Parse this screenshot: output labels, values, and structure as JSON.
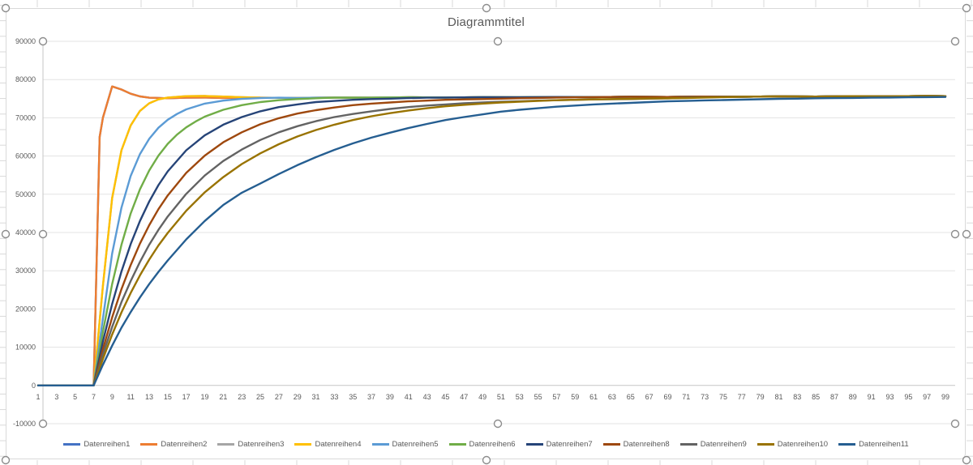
{
  "chart": {
    "title": "Diagrammtitel"
  },
  "axes": {
    "y_ticks": [
      "90000",
      "80000",
      "70000",
      "60000",
      "50000",
      "40000",
      "30000",
      "20000",
      "10000",
      "0",
      "-10000"
    ],
    "x_ticks": [
      "1",
      "3",
      "5",
      "7",
      "9",
      "11",
      "13",
      "15",
      "17",
      "19",
      "21",
      "23",
      "25",
      "27",
      "29",
      "31",
      "33",
      "35",
      "37",
      "39",
      "41",
      "43",
      "45",
      "47",
      "49",
      "51",
      "53",
      "55",
      "57",
      "59",
      "61",
      "63",
      "65",
      "67",
      "69",
      "71",
      "73",
      "75",
      "77",
      "79",
      "81",
      "83",
      "85",
      "87",
      "89",
      "91",
      "93",
      "95",
      "97",
      "99"
    ]
  },
  "colors": {
    "title_text": "#595959",
    "axis_text": "#595959",
    "gridline": "#E3E3E3",
    "axis_line": "#C6C6C6",
    "chart_border": "#D9D9D9",
    "worksheet_line": "#D9D9D9",
    "handle_stroke": "#8C8C8C",
    "handle_fill": "#FFFFFF"
  },
  "chart_data": {
    "type": "line",
    "title": "Diagrammtitel",
    "xlabel": "",
    "ylabel": "",
    "x_range": [
      1,
      99
    ],
    "ylim": [
      -10000,
      90000
    ],
    "grid": true,
    "legend_position": "bottom",
    "note": "11 series; all are 0 for x=1..7 then rise toward ~75500. Series1 coincides with Series2 (hidden under it); Series3 coincides with Series4. Band = common converged tail shared by settled series.",
    "band": [
      [
        21,
        75200
      ],
      [
        25,
        75250
      ],
      [
        29,
        75200
      ],
      [
        33,
        75300
      ],
      [
        37,
        75250
      ],
      [
        41,
        75350
      ],
      [
        45,
        75300
      ],
      [
        49,
        75400
      ],
      [
        53,
        75350
      ],
      [
        57,
        75450
      ],
      [
        61,
        75400
      ],
      [
        65,
        75500
      ],
      [
        69,
        75450
      ],
      [
        73,
        75550
      ],
      [
        77,
        75500
      ],
      [
        81,
        75600
      ],
      [
        85,
        75550
      ],
      [
        89,
        75650
      ],
      [
        93,
        75600
      ],
      [
        97,
        75700
      ],
      [
        99,
        75650
      ]
    ],
    "series": [
      {
        "name": "Datenreihen1",
        "color": "#4472C4",
        "same_as": "Datenreihen2"
      },
      {
        "name": "Datenreihen2",
        "color": "#ED7D31",
        "band_from": 21,
        "points": [
          [
            1,
            0
          ],
          [
            7,
            0
          ],
          [
            7.65,
            65000
          ],
          [
            8,
            70000
          ],
          [
            9,
            78200
          ],
          [
            10,
            77400
          ],
          [
            11,
            76300
          ],
          [
            12,
            75600
          ],
          [
            13,
            75250
          ],
          [
            15,
            75100
          ],
          [
            17,
            75250
          ],
          [
            19,
            75300
          ]
        ]
      },
      {
        "name": "Datenreihen3",
        "color": "#A5A5A5",
        "same_as": "Datenreihen4"
      },
      {
        "name": "Datenreihen4",
        "color": "#FFC000",
        "band_from": 25,
        "points": [
          [
            1,
            0
          ],
          [
            7,
            0
          ],
          [
            8,
            26000
          ],
          [
            9,
            49000
          ],
          [
            10,
            61500
          ],
          [
            11,
            68000
          ],
          [
            12,
            71800
          ],
          [
            13,
            73800
          ],
          [
            14,
            74800
          ],
          [
            15,
            75300
          ],
          [
            17,
            75650
          ],
          [
            19,
            75700
          ],
          [
            21,
            75550
          ],
          [
            23,
            75400
          ]
        ]
      },
      {
        "name": "Datenreihen5",
        "color": "#5B9BD5",
        "band_from": 29,
        "points": [
          [
            1,
            0
          ],
          [
            7,
            0
          ],
          [
            8,
            17500
          ],
          [
            9,
            34500
          ],
          [
            10,
            46500
          ],
          [
            11,
            54800
          ],
          [
            12,
            60500
          ],
          [
            13,
            64500
          ],
          [
            14,
            67400
          ],
          [
            15,
            69500
          ],
          [
            16,
            71000
          ],
          [
            17,
            72200
          ],
          [
            19,
            73700
          ],
          [
            21,
            74500
          ],
          [
            23,
            74950
          ],
          [
            25,
            75150
          ],
          [
            27,
            75250
          ]
        ]
      },
      {
        "name": "Datenreihen6",
        "color": "#70AD47",
        "band_from": 37,
        "points": [
          [
            1,
            0
          ],
          [
            7,
            0
          ],
          [
            8,
            14000
          ],
          [
            9,
            26500
          ],
          [
            10,
            36800
          ],
          [
            11,
            45000
          ],
          [
            12,
            51300
          ],
          [
            13,
            56200
          ],
          [
            14,
            60100
          ],
          [
            15,
            63200
          ],
          [
            16,
            65600
          ],
          [
            17,
            67500
          ],
          [
            18,
            69000
          ],
          [
            19,
            70300
          ],
          [
            21,
            72100
          ],
          [
            23,
            73300
          ],
          [
            25,
            74100
          ],
          [
            27,
            74600
          ],
          [
            29,
            74900
          ],
          [
            31,
            75100
          ],
          [
            33,
            75250
          ]
        ]
      },
      {
        "name": "Datenreihen7",
        "color": "#264478",
        "band_from": 45,
        "points": [
          [
            1,
            0
          ],
          [
            7,
            0
          ],
          [
            8,
            11500
          ],
          [
            9,
            21300
          ],
          [
            10,
            29800
          ],
          [
            11,
            37000
          ],
          [
            12,
            43000
          ],
          [
            13,
            48100
          ],
          [
            14,
            52400
          ],
          [
            15,
            56000
          ],
          [
            17,
            61500
          ],
          [
            19,
            65400
          ],
          [
            21,
            68200
          ],
          [
            23,
            70200
          ],
          [
            25,
            71700
          ],
          [
            27,
            72800
          ],
          [
            29,
            73500
          ],
          [
            31,
            74100
          ],
          [
            33,
            74400
          ],
          [
            35,
            74700
          ],
          [
            37,
            74900
          ],
          [
            39,
            75000
          ],
          [
            41,
            75150
          ],
          [
            43,
            75250
          ]
        ]
      },
      {
        "name": "Datenreihen8",
        "color": "#9E480E",
        "band_from": 61,
        "points": [
          [
            1,
            0
          ],
          [
            7,
            0
          ],
          [
            8,
            9500
          ],
          [
            9,
            17800
          ],
          [
            10,
            25200
          ],
          [
            11,
            31500
          ],
          [
            12,
            37100
          ],
          [
            13,
            41900
          ],
          [
            14,
            46100
          ],
          [
            15,
            49700
          ],
          [
            17,
            55600
          ],
          [
            19,
            60100
          ],
          [
            21,
            63600
          ],
          [
            23,
            66200
          ],
          [
            25,
            68300
          ],
          [
            27,
            69900
          ],
          [
            29,
            71100
          ],
          [
            31,
            72000
          ],
          [
            33,
            72700
          ],
          [
            35,
            73300
          ],
          [
            37,
            73700
          ],
          [
            39,
            74000
          ],
          [
            41,
            74300
          ],
          [
            43,
            74500
          ],
          [
            45,
            74700
          ],
          [
            47,
            74800
          ],
          [
            49,
            74900
          ],
          [
            51,
            75000
          ],
          [
            53,
            75100
          ],
          [
            55,
            75200
          ],
          [
            57,
            75300
          ]
        ]
      },
      {
        "name": "Datenreihen9",
        "color": "#636363",
        "band_from": 77,
        "points": [
          [
            1,
            0
          ],
          [
            7,
            0
          ],
          [
            8,
            8100
          ],
          [
            9,
            15300
          ],
          [
            10,
            21800
          ],
          [
            11,
            27300
          ],
          [
            12,
            32300
          ],
          [
            13,
            36800
          ],
          [
            14,
            40700
          ],
          [
            15,
            44200
          ],
          [
            17,
            50100
          ],
          [
            19,
            54900
          ],
          [
            21,
            58700
          ],
          [
            23,
            61700
          ],
          [
            25,
            64200
          ],
          [
            27,
            66200
          ],
          [
            29,
            67800
          ],
          [
            31,
            69100
          ],
          [
            33,
            70200
          ],
          [
            35,
            71000
          ],
          [
            37,
            71700
          ],
          [
            39,
            72300
          ],
          [
            41,
            72800
          ],
          [
            43,
            73200
          ],
          [
            45,
            73500
          ],
          [
            47,
            73800
          ],
          [
            49,
            74000
          ],
          [
            51,
            74200
          ],
          [
            53,
            74300
          ],
          [
            55,
            74500
          ],
          [
            57,
            74600
          ],
          [
            59,
            74700
          ],
          [
            61,
            74800
          ],
          [
            63,
            74850
          ],
          [
            65,
            74900
          ],
          [
            67,
            75000
          ],
          [
            69,
            75050
          ],
          [
            71,
            75250
          ],
          [
            73,
            75350
          ]
        ]
      },
      {
        "name": "Datenreihen10",
        "color": "#997300",
        "band_from": 77,
        "points": [
          [
            1,
            0
          ],
          [
            7,
            0
          ],
          [
            8,
            6900
          ],
          [
            9,
            13300
          ],
          [
            10,
            19100
          ],
          [
            11,
            24200
          ],
          [
            12,
            28800
          ],
          [
            13,
            32900
          ],
          [
            14,
            36600
          ],
          [
            15,
            39900
          ],
          [
            17,
            45700
          ],
          [
            19,
            50500
          ],
          [
            21,
            54500
          ],
          [
            23,
            57900
          ],
          [
            25,
            60700
          ],
          [
            27,
            63100
          ],
          [
            29,
            65100
          ],
          [
            31,
            66800
          ],
          [
            33,
            68200
          ],
          [
            35,
            69400
          ],
          [
            37,
            70400
          ],
          [
            39,
            71200
          ],
          [
            41,
            71900
          ],
          [
            43,
            72500
          ],
          [
            45,
            73000
          ],
          [
            47,
            73400
          ],
          [
            49,
            73700
          ],
          [
            51,
            74000
          ],
          [
            53,
            74200
          ],
          [
            55,
            74400
          ],
          [
            57,
            74600
          ],
          [
            59,
            74700
          ],
          [
            61,
            74800
          ],
          [
            63,
            74900
          ],
          [
            65,
            74950
          ],
          [
            67,
            75050
          ],
          [
            69,
            75100
          ],
          [
            71,
            75150
          ],
          [
            73,
            75300
          ],
          [
            75,
            75400
          ]
        ]
      },
      {
        "name": "Datenreihen11",
        "color": "#255E91",
        "points": [
          [
            1,
            0
          ],
          [
            7,
            0
          ],
          [
            8,
            5400
          ],
          [
            9,
            10400
          ],
          [
            10,
            15100
          ],
          [
            11,
            19200
          ],
          [
            12,
            23000
          ],
          [
            13,
            26500
          ],
          [
            14,
            29700
          ],
          [
            15,
            32700
          ],
          [
            17,
            38200
          ],
          [
            19,
            43000
          ],
          [
            21,
            47200
          ],
          [
            23,
            50400
          ],
          [
            25,
            52800
          ],
          [
            27,
            55300
          ],
          [
            29,
            57600
          ],
          [
            31,
            59700
          ],
          [
            33,
            61600
          ],
          [
            35,
            63300
          ],
          [
            37,
            64800
          ],
          [
            39,
            66100
          ],
          [
            41,
            67300
          ],
          [
            43,
            68400
          ],
          [
            45,
            69400
          ],
          [
            47,
            70200
          ],
          [
            49,
            70900
          ],
          [
            51,
            71600
          ],
          [
            53,
            72100
          ],
          [
            55,
            72500
          ],
          [
            57,
            72900
          ],
          [
            59,
            73200
          ],
          [
            61,
            73500
          ],
          [
            63,
            73700
          ],
          [
            65,
            73900
          ],
          [
            67,
            74100
          ],
          [
            69,
            74300
          ],
          [
            71,
            74400
          ],
          [
            73,
            74550
          ],
          [
            75,
            74650
          ],
          [
            77,
            74750
          ],
          [
            79,
            74850
          ],
          [
            81,
            74950
          ],
          [
            83,
            75000
          ],
          [
            85,
            75100
          ],
          [
            87,
            75150
          ],
          [
            89,
            75200
          ],
          [
            91,
            75250
          ],
          [
            93,
            75300
          ],
          [
            95,
            75350
          ],
          [
            97,
            75400
          ],
          [
            99,
            75450
          ]
        ]
      }
    ]
  }
}
